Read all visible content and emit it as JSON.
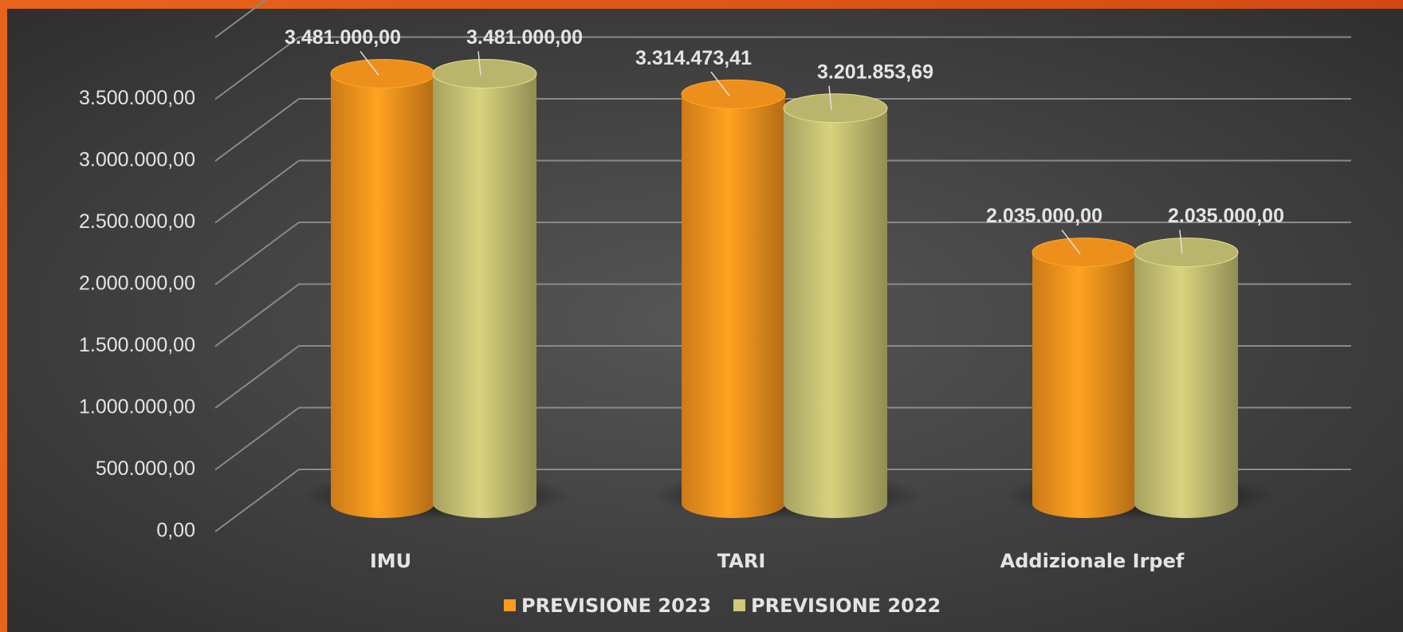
{
  "chart_data": {
    "type": "bar",
    "categories": [
      "IMU",
      "TARI",
      "Addizionale Irpef"
    ],
    "series": [
      {
        "name": "PREVISIONE 2023",
        "color": "#ff9a1e",
        "values": [
          3481000,
          3314473.41,
          2035000
        ],
        "value_labels": [
          "3.481.000,00",
          "3.314.473,41",
          "2.035.000,00"
        ]
      },
      {
        "name": "PREVISIONE 2022",
        "color": "#cfc978",
        "values": [
          3481000,
          3201853.69,
          2035000
        ],
        "value_labels": [
          "3.481.000,00",
          "3.201.853,69",
          "2.035.000,00"
        ]
      }
    ],
    "ylim": [
      0,
      4000000
    ],
    "yticks": [
      {
        "value": 0,
        "label": "0,00"
      },
      {
        "value": 500000,
        "label": "500.000,00"
      },
      {
        "value": 1000000,
        "label": "1.000.000,00"
      },
      {
        "value": 1500000,
        "label": "1.500.000,00"
      },
      {
        "value": 2000000,
        "label": "2.000.000,00"
      },
      {
        "value": 2500000,
        "label": "2.500.000,00"
      },
      {
        "value": 3000000,
        "label": "3.000.000,00"
      },
      {
        "value": 3500000,
        "label": "3.500.000,00"
      }
    ],
    "grid": true,
    "legend": "bottom"
  }
}
